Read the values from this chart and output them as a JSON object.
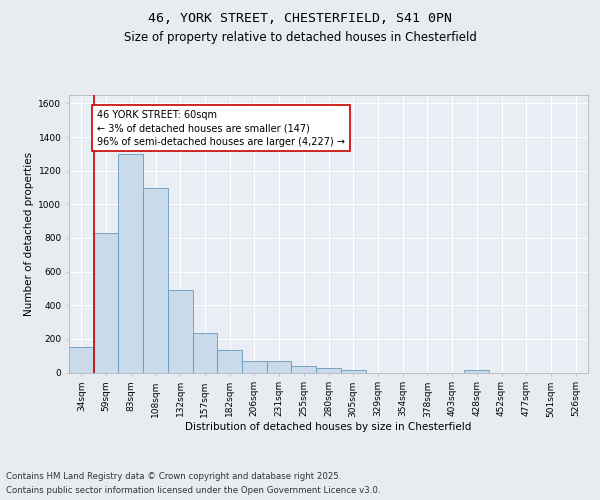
{
  "title_line1": "46, YORK STREET, CHESTERFIELD, S41 0PN",
  "title_line2": "Size of property relative to detached houses in Chesterfield",
  "xlabel": "Distribution of detached houses by size in Chesterfield",
  "ylabel": "Number of detached properties",
  "categories": [
    "34sqm",
    "59sqm",
    "83sqm",
    "108sqm",
    "132sqm",
    "157sqm",
    "182sqm",
    "206sqm",
    "231sqm",
    "255sqm",
    "280sqm",
    "305sqm",
    "329sqm",
    "354sqm",
    "378sqm",
    "403sqm",
    "428sqm",
    "452sqm",
    "477sqm",
    "501sqm",
    "526sqm"
  ],
  "values": [
    150,
    830,
    1300,
    1100,
    490,
    235,
    135,
    70,
    70,
    38,
    25,
    12,
    0,
    0,
    0,
    0,
    15,
    0,
    0,
    0,
    0
  ],
  "bar_color": "#c9daea",
  "bar_edge_color": "#6699bb",
  "highlight_line_color": "#cc0000",
  "annotation_text": "46 YORK STREET: 60sqm\n← 3% of detached houses are smaller (147)\n96% of semi-detached houses are larger (4,227) →",
  "annotation_box_color": "#ffffff",
  "annotation_box_edge": "#cc0000",
  "ylim": [
    0,
    1650
  ],
  "yticks": [
    0,
    200,
    400,
    600,
    800,
    1000,
    1200,
    1400,
    1600
  ],
  "footer_line1": "Contains HM Land Registry data © Crown copyright and database right 2025.",
  "footer_line2": "Contains public sector information licensed under the Open Government Licence v3.0.",
  "bg_color": "#e8ecf0",
  "plot_bg_color": "#e8eef4",
  "title_fontsize": 9.5,
  "subtitle_fontsize": 8.5,
  "axis_label_fontsize": 7.5,
  "tick_fontsize": 6.5,
  "annotation_fontsize": 7,
  "footer_fontsize": 6.2
}
